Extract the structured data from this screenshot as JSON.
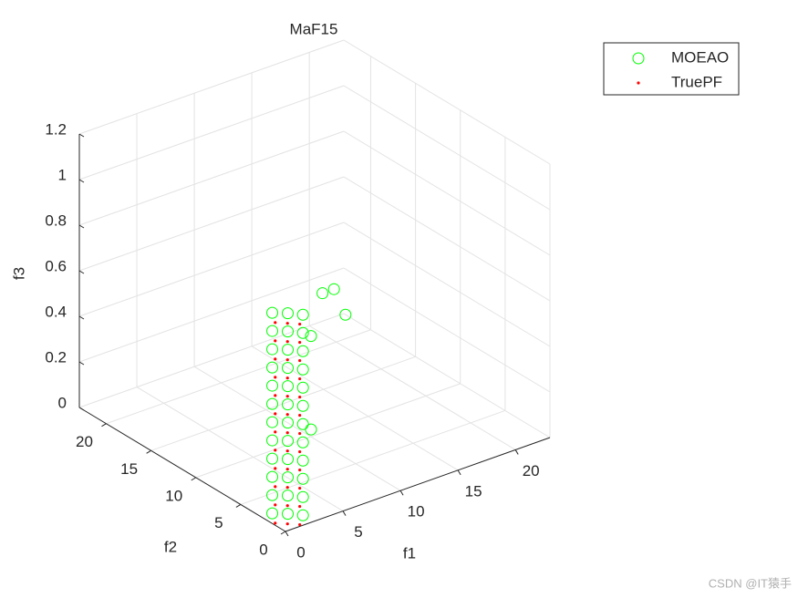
{
  "chart_data": {
    "type": "scatter3",
    "title": "MaF15",
    "xlabel": "f1",
    "ylabel": "f2",
    "zlabel": "f3",
    "xlim": [
      0,
      23
    ],
    "ylim": [
      0,
      23
    ],
    "zlim": [
      0,
      1.2
    ],
    "xticks": [
      0,
      5,
      10,
      15,
      20
    ],
    "yticks": [
      0,
      5,
      10,
      15,
      20
    ],
    "zticks": [
      0,
      0.2,
      0.4,
      0.6,
      0.8,
      1,
      1.2
    ],
    "grid": true,
    "legend": "outside-top-right",
    "watermark": "CSDN @IT猿手",
    "series": [
      {
        "name": "MOEAO",
        "color": "#00ff00",
        "marker": "circle",
        "x": [
          0.1,
          0.9,
          1.6,
          0.1,
          0.9,
          1.6,
          0.1,
          0.9,
          1.6,
          0.1,
          0.9,
          1.6,
          0.1,
          0.9,
          1.6,
          0.1,
          0.9,
          1.6,
          0.1,
          0.9,
          1.6,
          0.1,
          0.9,
          1.6,
          0.1,
          0.9,
          1.6,
          0.1,
          0.9,
          1.6,
          0.1,
          0.9,
          1.6,
          0.1,
          0.9,
          1.6,
          4,
          5,
          6,
          3,
          3
        ],
        "y": [
          1.6,
          0.9,
          0.1,
          1.6,
          0.9,
          0.1,
          1.6,
          0.9,
          0.1,
          1.6,
          0.9,
          0.1,
          1.6,
          0.9,
          0.1,
          1.6,
          0.9,
          0.1,
          1.6,
          0.9,
          0.1,
          1.6,
          0.9,
          0.1,
          1.6,
          0.9,
          0.1,
          1.6,
          0.9,
          0.1,
          1.6,
          0.9,
          0.1,
          1.6,
          0.9,
          0.1,
          1,
          1,
          1,
          1,
          1
        ],
        "z": [
          0.04,
          0.04,
          0.04,
          0.12,
          0.12,
          0.12,
          0.2,
          0.2,
          0.2,
          0.28,
          0.28,
          0.28,
          0.36,
          0.36,
          0.36,
          0.44,
          0.44,
          0.44,
          0.52,
          0.52,
          0.52,
          0.6,
          0.6,
          0.6,
          0.68,
          0.68,
          0.68,
          0.76,
          0.76,
          0.76,
          0.84,
          0.84,
          0.84,
          0.92,
          0.92,
          0.92,
          0.95,
          0.95,
          0.82,
          0.78,
          0.37
        ]
      },
      {
        "name": "TruePF",
        "color": "#ff0000",
        "marker": "dot",
        "x": [
          0.2,
          0.8,
          1.4,
          0.2,
          0.8,
          1.4,
          0.2,
          0.8,
          1.4,
          0.2,
          0.8,
          1.4,
          0.2,
          0.8,
          1.4,
          0.2,
          0.8,
          1.4,
          0.2,
          0.8,
          1.4,
          0.2,
          0.8,
          1.4,
          0.2,
          0.8,
          1.4,
          0.2,
          0.8,
          1.4,
          0.2,
          0.8,
          1.4,
          0.2,
          0.8,
          1.4
        ],
        "y": [
          1.4,
          0.8,
          0.2,
          1.4,
          0.8,
          0.2,
          1.4,
          0.8,
          0.2,
          1.4,
          0.8,
          0.2,
          1.4,
          0.8,
          0.2,
          1.4,
          0.8,
          0.2,
          1.4,
          0.8,
          0.2,
          1.4,
          0.8,
          0.2,
          1.4,
          0.8,
          0.2,
          1.4,
          0.8,
          0.2,
          1.4,
          0.8,
          0.2,
          1.4,
          0.8,
          0.2
        ],
        "z": [
          0.0,
          0.0,
          0.0,
          0.08,
          0.08,
          0.08,
          0.16,
          0.16,
          0.16,
          0.24,
          0.24,
          0.24,
          0.32,
          0.32,
          0.32,
          0.4,
          0.4,
          0.4,
          0.48,
          0.48,
          0.48,
          0.56,
          0.56,
          0.56,
          0.64,
          0.64,
          0.64,
          0.72,
          0.72,
          0.72,
          0.8,
          0.8,
          0.8,
          0.88,
          0.88,
          0.88
        ]
      }
    ]
  }
}
